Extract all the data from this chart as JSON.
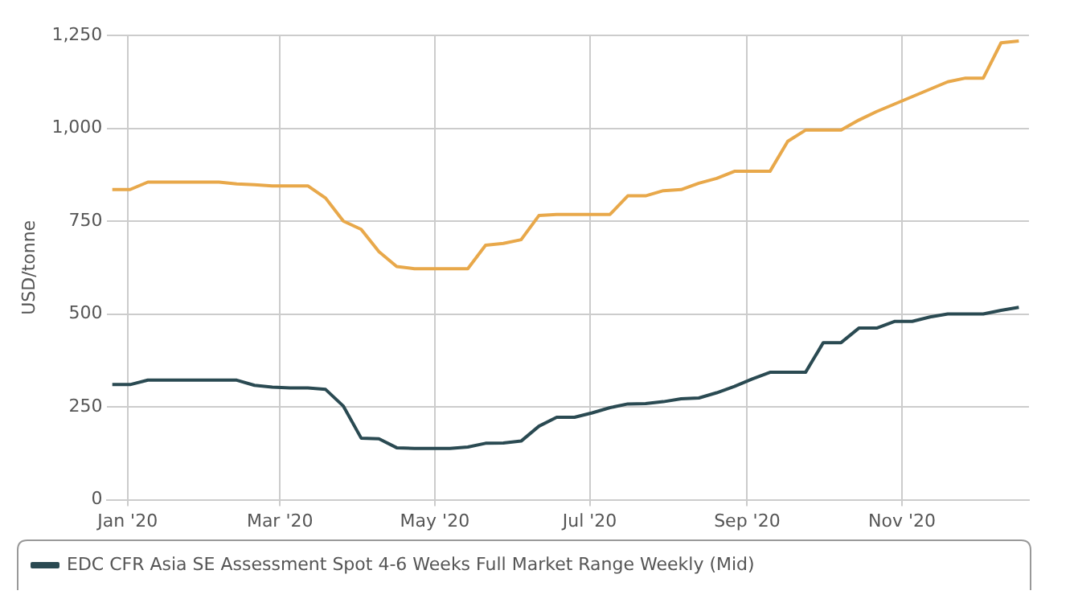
{
  "chart_data": {
    "type": "line",
    "ylabel": "USD/tonne",
    "x": [
      "2019-12-26",
      "2020-01-02",
      "2020-01-09",
      "2020-01-16",
      "2020-01-23",
      "2020-01-30",
      "2020-02-06",
      "2020-02-13",
      "2020-02-20",
      "2020-02-27",
      "2020-03-05",
      "2020-03-12",
      "2020-03-19",
      "2020-03-26",
      "2020-04-02",
      "2020-04-09",
      "2020-04-16",
      "2020-04-23",
      "2020-04-30",
      "2020-05-07",
      "2020-05-14",
      "2020-05-21",
      "2020-05-28",
      "2020-06-04",
      "2020-06-11",
      "2020-06-18",
      "2020-06-25",
      "2020-07-02",
      "2020-07-09",
      "2020-07-16",
      "2020-07-23",
      "2020-07-30",
      "2020-08-06",
      "2020-08-13",
      "2020-08-20",
      "2020-08-27",
      "2020-09-03",
      "2020-09-10",
      "2020-09-17",
      "2020-09-24",
      "2020-10-01",
      "2020-10-08",
      "2020-10-15",
      "2020-10-22",
      "2020-10-29",
      "2020-11-05",
      "2020-11-12",
      "2020-11-19",
      "2020-11-26",
      "2020-12-03",
      "2020-12-10",
      "2020-12-17"
    ],
    "series": [
      {
        "color": "#e8a84a",
        "values": [
          835,
          835,
          855,
          855,
          855,
          855,
          855,
          850,
          848,
          845,
          845,
          845,
          812,
          750,
          728,
          668,
          628,
          622,
          622,
          622,
          622,
          685,
          690,
          700,
          765,
          768,
          768,
          768,
          768,
          818,
          818,
          832,
          835,
          852,
          865,
          884,
          884,
          884,
          965,
          995,
          995,
          995,
          1022,
          1045,
          1065,
          1085,
          1105,
          1125,
          1135,
          1135,
          1230,
          1235
        ]
      },
      {
        "name": "EDC CFR Asia SE Assessment Spot 4-6 Weeks Full Market Range Weekly (Mid)",
        "color": "#2a4a52",
        "values": [
          310,
          310,
          322,
          322,
          322,
          322,
          322,
          322,
          308,
          303,
          301,
          301,
          297,
          252,
          166,
          164,
          140,
          138,
          138,
          138,
          142,
          152,
          153,
          158,
          198,
          222,
          222,
          234,
          248,
          258,
          259,
          264,
          272,
          274,
          288,
          305,
          325,
          343,
          343,
          343,
          423,
          423,
          462,
          462,
          480,
          480,
          492,
          500,
          500,
          500,
          510,
          518
        ]
      }
    ],
    "xlim": [
      "2019-12-24",
      "2020-12-21"
    ],
    "xticks": [
      {
        "value": "2020-01-01",
        "label": "Jan '20"
      },
      {
        "value": "2020-03-01",
        "label": "Mar '20"
      },
      {
        "value": "2020-05-01",
        "label": "May '20"
      },
      {
        "value": "2020-07-01",
        "label": "Jul '20"
      },
      {
        "value": "2020-09-01",
        "label": "Sep '20"
      },
      {
        "value": "2020-11-01",
        "label": "Nov '20"
      }
    ],
    "ylim": [
      0,
      1250
    ],
    "yticks": [
      0,
      250,
      500,
      750,
      {
        "value": 1000,
        "label": "1,000"
      },
      {
        "value": 1250,
        "label": "1,250"
      }
    ],
    "grid": true,
    "legend": "bottom",
    "marker": "none",
    "line_style": "solid"
  }
}
